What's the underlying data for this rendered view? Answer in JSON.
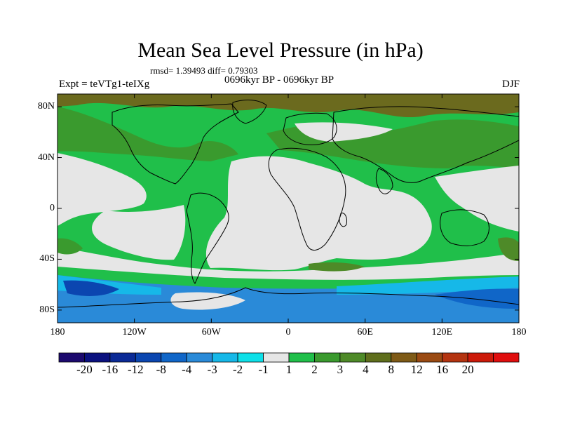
{
  "title": "Mean Sea Level Pressure (in hPa)",
  "stats": "rmsd= 1.39493 diff= 0.79303",
  "period": "0696kyr BP - 0696kyr BP",
  "experiment": "Expt = teVTg1-teIXg",
  "season": "DJF",
  "map": {
    "lon_range": [
      -180,
      180
    ],
    "lat_range": [
      -90,
      90
    ],
    "lon_ticks": [
      {
        "value": -180,
        "label": "180"
      },
      {
        "value": -120,
        "label": "120W"
      },
      {
        "value": -60,
        "label": "60W"
      },
      {
        "value": 0,
        "label": "0"
      },
      {
        "value": 60,
        "label": "60E"
      },
      {
        "value": 120,
        "label": "120E"
      },
      {
        "value": 180,
        "label": "180"
      }
    ],
    "lat_ticks": [
      {
        "value": 80,
        "label": "80N"
      },
      {
        "value": 40,
        "label": "40N"
      },
      {
        "value": 0,
        "label": "0"
      },
      {
        "value": -40,
        "label": "40S"
      },
      {
        "value": -80,
        "label": "80S"
      }
    ]
  },
  "colorbar": {
    "colors": [
      "#1c0a6e",
      "#0b117f",
      "#0b2a96",
      "#0b46b0",
      "#1066c8",
      "#2a8ad8",
      "#16b8e8",
      "#0ee0e8",
      "#e6e6e6",
      "#20bf4a",
      "#3a9a2e",
      "#4e8a28",
      "#5f6e1c",
      "#7e5a16",
      "#9a4a12",
      "#b43410",
      "#cc1a0a",
      "#e00e0e"
    ],
    "labels": [
      "-20",
      "-16",
      "-12",
      "-8",
      "-4",
      "-3",
      "-2",
      "-1",
      "1",
      "2",
      "3",
      "4",
      "8",
      "12",
      "16",
      "20"
    ]
  }
}
